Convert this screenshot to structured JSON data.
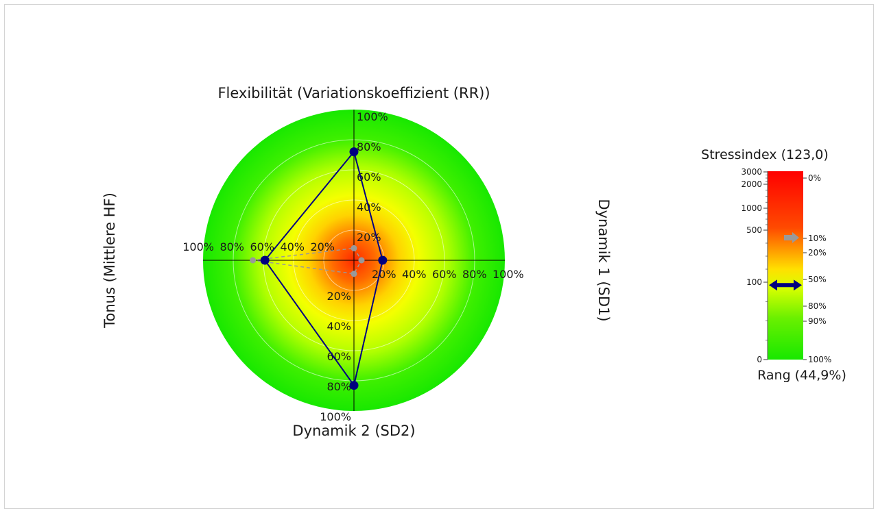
{
  "chart_data": [
    {
      "type": "radar",
      "axes": [
        {
          "label": "Flexibilität (Variationskoeffizient (RR))",
          "direction": "top"
        },
        {
          "label": "Dynamik 1 (SD1)",
          "direction": "right"
        },
        {
          "label": "Dynamik 2 (SD2)",
          "direction": "bottom"
        },
        {
          "label": "Tonus (Mittlere HF)",
          "direction": "left"
        }
      ],
      "tick_labels": [
        "20%",
        "40%",
        "60%",
        "80%",
        "100%"
      ],
      "range": [
        0,
        100
      ],
      "background": "radial gradient red center to green edge",
      "series": [
        {
          "style": "solid",
          "color": "#000080",
          "values": [
            72,
            19,
            83,
            59
          ]
        },
        {
          "style": "dashed",
          "color": "#999999",
          "values": [
            8,
            5,
            9,
            67
          ]
        }
      ]
    },
    {
      "type": "gauge",
      "title": "Stressindex (123,0)",
      "subtitle": "Rang (44,9%)",
      "left_ticks": [
        "3000",
        "2000",
        "1000",
        "500",
        "100",
        "0"
      ],
      "right_ticks": [
        "0%",
        "10%",
        "20%",
        "50%",
        "80%",
        "90%",
        "100%"
      ],
      "value": 123.0,
      "rank_percent": 44.9,
      "reference_percent": 10,
      "marker_color": "#000080",
      "reference_color": "#9a9a9a"
    }
  ]
}
